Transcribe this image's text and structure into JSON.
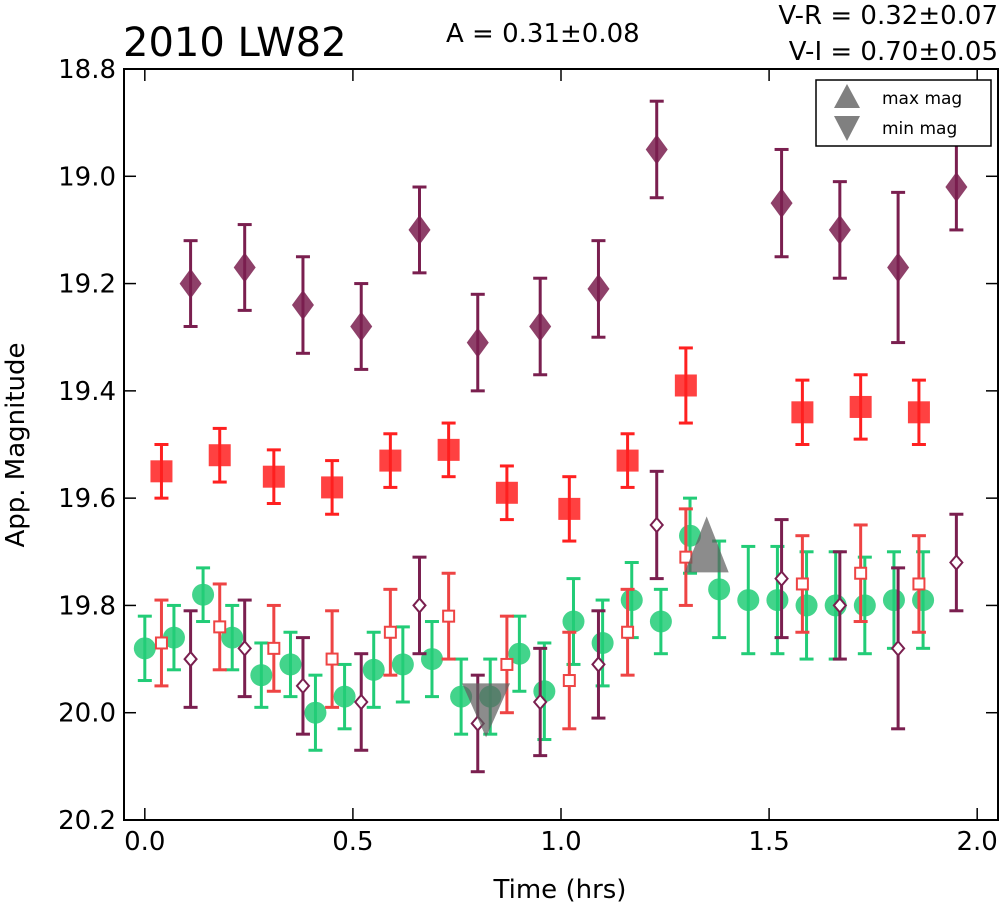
{
  "chart_data": {
    "type": "scatter",
    "title": "2010 LW82",
    "stats": {
      "amplitude": "A  = 0.31±0.08",
      "vr": "V-R = 0.32±0.07",
      "vi": "V-I  = 0.70±0.05"
    },
    "xlabel": "Time (hrs)",
    "ylabel": "App. Magnitude",
    "xlim": [
      -0.05,
      2.05
    ],
    "ylim": [
      20.2,
      18.8
    ],
    "y_inverted": true,
    "x_ticks": [
      "0.0",
      "0.5",
      "1.0",
      "1.5",
      "2.0"
    ],
    "y_ticks": [
      "18.8",
      "19.0",
      "19.2",
      "19.4",
      "19.6",
      "19.8",
      "20.0",
      "20.2"
    ],
    "legend": {
      "position": "top-right",
      "items": [
        {
          "label": "max mag",
          "marker": "triangle-up"
        },
        {
          "label": "min mag",
          "marker": "triangle-down"
        }
      ]
    },
    "series": [
      {
        "marker": "diamond-filled",
        "color": "#7a1f4f",
        "x": [
          0.11,
          0.24,
          0.38,
          0.52,
          0.66,
          0.8,
          0.95,
          1.09,
          1.23,
          1.53,
          1.67,
          1.81,
          1.95
        ],
        "y": [
          19.2,
          19.17,
          19.24,
          19.28,
          19.1,
          19.31,
          19.28,
          19.21,
          18.95,
          19.05,
          19.1,
          19.17,
          19.02
        ],
        "err": [
          0.08,
          0.08,
          0.09,
          0.08,
          0.08,
          0.09,
          0.09,
          0.09,
          0.09,
          0.1,
          0.09,
          0.14,
          0.08
        ]
      },
      {
        "marker": "square-filled",
        "color": "#ff2020",
        "x": [
          0.04,
          0.18,
          0.31,
          0.45,
          0.59,
          0.73,
          0.87,
          1.02,
          1.16,
          1.3,
          1.58,
          1.72,
          1.86
        ],
        "y": [
          19.55,
          19.52,
          19.56,
          19.58,
          19.53,
          19.51,
          19.59,
          19.62,
          19.53,
          19.39,
          19.44,
          19.43,
          19.44
        ],
        "err": [
          0.05,
          0.05,
          0.05,
          0.05,
          0.05,
          0.05,
          0.05,
          0.06,
          0.05,
          0.07,
          0.06,
          0.06,
          0.06
        ]
      },
      {
        "marker": "circle-filled",
        "color": "#22cc77",
        "x": [
          0.0,
          0.07,
          0.14,
          0.21,
          0.28,
          0.35,
          0.41,
          0.48,
          0.55,
          0.62,
          0.69,
          0.76,
          0.83,
          0.9,
          0.96,
          1.03,
          1.1,
          1.17,
          1.24,
          1.31,
          1.38,
          1.45,
          1.52,
          1.59,
          1.66,
          1.73,
          1.8,
          1.87
        ],
        "y": [
          19.88,
          19.86,
          19.78,
          19.86,
          19.93,
          19.91,
          20.0,
          19.97,
          19.92,
          19.91,
          19.9,
          19.97,
          19.97,
          19.89,
          19.96,
          19.83,
          19.87,
          19.79,
          19.83,
          19.67,
          19.77,
          19.79,
          19.79,
          19.8,
          19.8,
          19.8,
          19.79,
          19.79
        ],
        "err": [
          0.06,
          0.06,
          0.05,
          0.06,
          0.06,
          0.06,
          0.07,
          0.06,
          0.07,
          0.07,
          0.07,
          0.07,
          0.07,
          0.07,
          0.09,
          0.08,
          0.08,
          0.07,
          0.06,
          0.07,
          0.09,
          0.1,
          0.1,
          0.1,
          0.1,
          0.09,
          0.09,
          0.09
        ]
      },
      {
        "marker": "square-open",
        "color": "#ee4444",
        "x": [
          0.04,
          0.18,
          0.31,
          0.45,
          0.59,
          0.73,
          0.87,
          1.02,
          1.16,
          1.3,
          1.58,
          1.72,
          1.86
        ],
        "y": [
          19.87,
          19.84,
          19.88,
          19.9,
          19.85,
          19.82,
          19.91,
          19.94,
          19.85,
          19.71,
          19.76,
          19.74,
          19.76
        ],
        "err": [
          0.08,
          0.08,
          0.08,
          0.09,
          0.08,
          0.08,
          0.09,
          0.09,
          0.08,
          0.09,
          0.09,
          0.09,
          0.09
        ]
      },
      {
        "marker": "diamond-open",
        "color": "#7a1f4f",
        "x": [
          0.11,
          0.24,
          0.38,
          0.52,
          0.66,
          0.8,
          0.95,
          1.09,
          1.23,
          1.53,
          1.67,
          1.81,
          1.95
        ],
        "y": [
          19.9,
          19.88,
          19.95,
          19.98,
          19.8,
          20.02,
          19.98,
          19.91,
          19.65,
          19.75,
          19.8,
          19.88,
          19.72
        ],
        "err": [
          0.09,
          0.09,
          0.09,
          0.09,
          0.09,
          0.09,
          0.1,
          0.1,
          0.1,
          0.11,
          0.1,
          0.15,
          0.09
        ]
      }
    ],
    "extrema": [
      {
        "type": "max",
        "x": 1.35,
        "y": 19.69
      },
      {
        "type": "min",
        "x": 0.82,
        "y": 19.99
      }
    ]
  }
}
